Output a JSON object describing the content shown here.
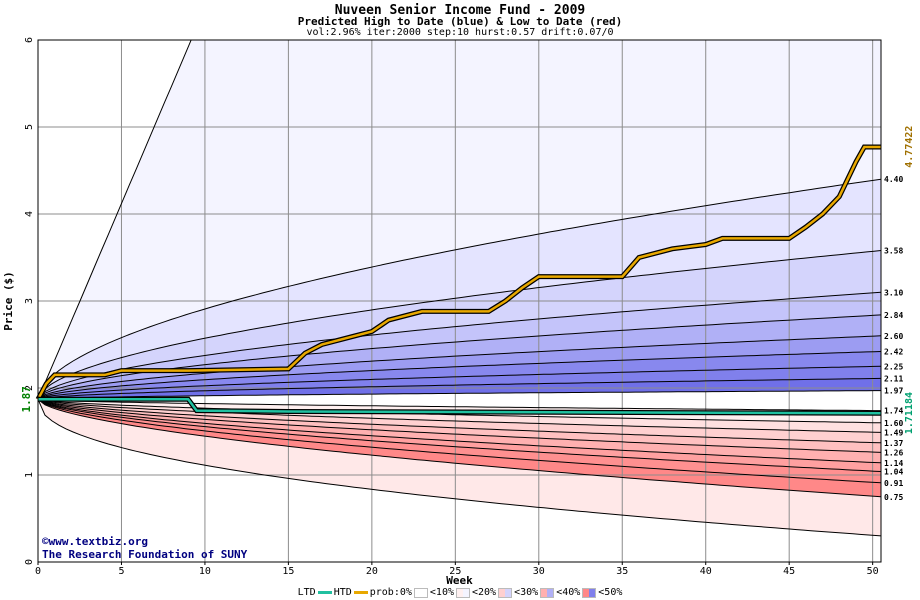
{
  "header": {
    "title": "Nuveen Senior Income Fund - 2009",
    "subtitle": "Predicted High to Date (blue) &  Low to Date (red)",
    "params": "vol:2.96% iter:2000 step:10 hurst:0.57 drift:0.07/0"
  },
  "credits": {
    "site": "www.textbiz.org",
    "org": "The Research Foundation of SUNY"
  },
  "chart_data": {
    "type": "area",
    "title": "Nuveen Senior Income Fund - 2009",
    "subtitle": "Predicted High to Date (blue) &  Low to Date (red)",
    "xlabel": "Week",
    "ylabel": "Price ($)",
    "xlim": [
      0,
      50.5
    ],
    "ylim": [
      0,
      6
    ],
    "x_ticks": [
      0,
      5,
      10,
      15,
      20,
      25,
      30,
      35,
      40,
      45,
      50
    ],
    "y_ticks": [
      0,
      1,
      2,
      3,
      4,
      5,
      6
    ],
    "start_price": "1.87",
    "start_value": 1.87,
    "grid": true,
    "band_levels_high": [
      "4.40",
      "3.58",
      "3.10",
      "2.84",
      "2.60",
      "2.42",
      "2.25",
      "2.11",
      "1.97"
    ],
    "band_levels_low": [
      "1.74",
      "1.60",
      "1.49",
      "1.37",
      "1.26",
      "1.14",
      "1.04",
      "0.91",
      "0.75"
    ],
    "high_quantile_curves": [
      {
        "name": "high 0%",
        "values": [
          1.87,
          6.0
        ],
        "end": 6.0
      },
      {
        "name": "high 10%",
        "end": 4.4
      },
      {
        "name": "high 20%",
        "end": 3.58
      },
      {
        "name": "high 30%",
        "end": 3.1
      },
      {
        "name": "high 40%",
        "end": 2.84
      },
      {
        "name": "high 50%",
        "end": 2.6
      },
      {
        "name": "high 60%",
        "end": 2.42
      },
      {
        "name": "high 70%",
        "end": 2.25
      },
      {
        "name": "high 80%",
        "end": 2.11
      },
      {
        "name": "high 90%",
        "end": 1.97
      }
    ],
    "low_quantile_curves": [
      {
        "name": "low 90%",
        "end": 1.74
      },
      {
        "name": "low 80%",
        "end": 1.6
      },
      {
        "name": "low 70%",
        "end": 1.49
      },
      {
        "name": "low 60%",
        "end": 1.37
      },
      {
        "name": "low 50%",
        "end": 1.26
      },
      {
        "name": "low 40%",
        "end": 1.14
      },
      {
        "name": "low 30%",
        "end": 1.04
      },
      {
        "name": "low 20%",
        "end": 0.91
      },
      {
        "name": "low 10%",
        "end": 0.75
      },
      {
        "name": "low 0%",
        "end": 0.3
      }
    ],
    "htd": {
      "name": "HTD",
      "end_label": "4.77422",
      "color": "#e8a800",
      "points": [
        [
          0,
          1.87
        ],
        [
          0.5,
          2.05
        ],
        [
          1,
          2.15
        ],
        [
          4,
          2.15
        ],
        [
          5,
          2.2
        ],
        [
          9,
          2.2
        ],
        [
          15,
          2.22
        ],
        [
          16,
          2.4
        ],
        [
          17,
          2.5
        ],
        [
          19,
          2.6
        ],
        [
          20,
          2.65
        ],
        [
          21,
          2.78
        ],
        [
          23,
          2.88
        ],
        [
          25,
          2.88
        ],
        [
          27,
          2.88
        ],
        [
          28,
          3.0
        ],
        [
          29,
          3.15
        ],
        [
          30,
          3.28
        ],
        [
          35,
          3.28
        ],
        [
          36,
          3.5
        ],
        [
          38,
          3.6
        ],
        [
          40,
          3.65
        ],
        [
          41,
          3.72
        ],
        [
          45,
          3.72
        ],
        [
          46,
          3.85
        ],
        [
          47,
          4.0
        ],
        [
          48,
          4.2
        ],
        [
          49,
          4.6
        ],
        [
          49.5,
          4.77
        ],
        [
          50.5,
          4.77
        ]
      ]
    },
    "ltd": {
      "name": "LTD",
      "end_label": "1.71184",
      "color": "#20c0a0",
      "points": [
        [
          0,
          1.87
        ],
        [
          1,
          1.87
        ],
        [
          9,
          1.87
        ],
        [
          9.5,
          1.74
        ],
        [
          15,
          1.73
        ],
        [
          50.5,
          1.71
        ]
      ]
    },
    "legend": {
      "ltd": "LTD",
      "htd": "HTD",
      "prob_label": "prob:0%",
      "items": [
        "<10%",
        "<20%",
        "<30%",
        "<40%",
        "<50%"
      ]
    },
    "colors": {
      "blue_bands": [
        "#f4f4ff",
        "#e4e4ff",
        "#d4d4fc",
        "#c4c4fa",
        "#b0b0f6",
        "#9c9cf2",
        "#8888ee",
        "#8080ec",
        "#7070e8",
        "#e8e8ff"
      ],
      "red_bands": [
        "#fff0f0",
        "#ffe0e0",
        "#ffd0d0",
        "#ffc0c0",
        "#ffb0b0",
        "#ffa0a0",
        "#ff9090",
        "#ff8888",
        "#ffe8e8",
        "#fff4f4"
      ],
      "htd": "#e8a800",
      "ltd": "#20c0a0",
      "start_label": "#008000",
      "htd_label": "#a07000",
      "ltd_label": "#00a070"
    }
  }
}
